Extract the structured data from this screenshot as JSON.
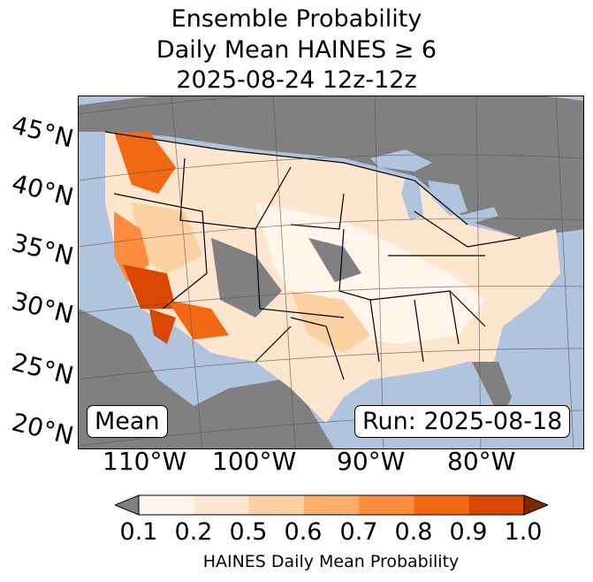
{
  "title": {
    "line1": "Ensemble Probability",
    "line2": "Daily Mean HAINES ≥ 6",
    "line3": "2025-08-24 12z-12z"
  },
  "map": {
    "ocean_color": "#b0c4de",
    "no_data_color": "#808080",
    "lat_labels": [
      "45°N",
      "40°N",
      "35°N",
      "30°N",
      "25°N",
      "20°N"
    ],
    "lon_labels": [
      "110°W",
      "100°W",
      "90°W",
      "80°W"
    ],
    "mean_box": "Mean",
    "run_box": "Run: 2025-08-18"
  },
  "colorbar": {
    "label": "HAINES Daily Mean Probability",
    "ticks": [
      "0.1",
      "0.2",
      "0.5",
      "0.6",
      "0.7",
      "0.8",
      "0.9",
      "1.0"
    ],
    "colors": [
      "#fff5eb",
      "#fee6ce",
      "#fdd0a2",
      "#fdae6b",
      "#fd8d3c",
      "#f16913",
      "#d94801",
      "#a63603"
    ],
    "under_color": "#808080",
    "over_color": "#7f2704"
  }
}
